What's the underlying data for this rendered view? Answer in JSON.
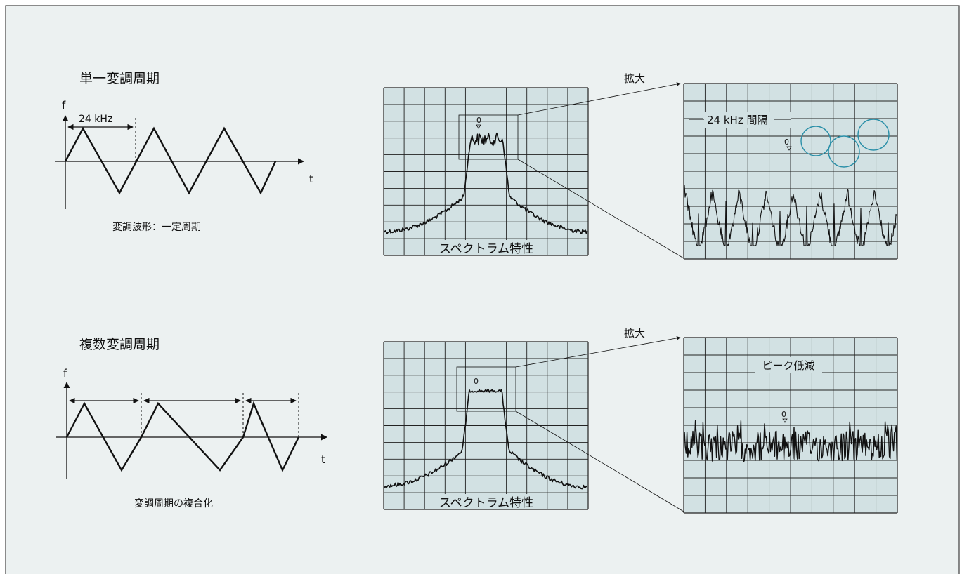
{
  "colors": {
    "panel_bg": "#ecf1f1",
    "panel_border": "#3c3c3c",
    "grid_bg": "#d2e1e3",
    "grid_line": "#222222",
    "trace": "#111111",
    "highlight_circle": "#2a8fa8"
  },
  "single": {
    "title": "単一変調周期",
    "axis_f": "f",
    "axis_t": "t",
    "period_label": "24 kHz",
    "caption": "変調波形：一定周期",
    "spectrum_caption": "スペクトラム特性",
    "zero_marker": "0",
    "zoom_label": "拡大",
    "zoom_annotation": "24 kHz 間隔",
    "zoom_zero_marker": "0"
  },
  "multiple": {
    "title": "複数変調周期",
    "axis_f": "f",
    "axis_t": "t",
    "caption": "変調周期の複合化",
    "spectrum_caption": "スペクトラム特性",
    "zero_marker": "0",
    "zoom_label": "拡大",
    "zoom_annotation": "ピーク低減",
    "zoom_zero_marker": "0"
  },
  "icons": {
    "zero_marker_icon": "triangle-down-marker",
    "zoom_arrow_icon": "arrow-right"
  }
}
